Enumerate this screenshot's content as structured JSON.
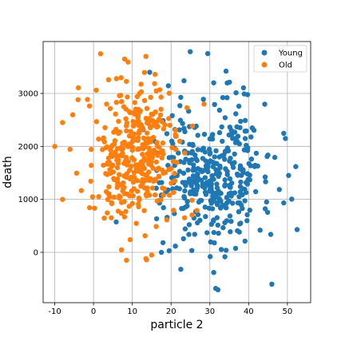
{
  "chart_data": {
    "type": "scatter",
    "title": "",
    "xlabel": "particle 2",
    "ylabel": "death",
    "xlim": [
      -13,
      56
    ],
    "ylim": [
      -950,
      3980
    ],
    "xticks": [
      -10,
      0,
      10,
      20,
      30,
      40,
      50
    ],
    "yticks": [
      0,
      1000,
      2000,
      3000
    ],
    "grid": true,
    "legend_position": "top-right",
    "series": [
      {
        "name": "Young",
        "color": "#1f77b4",
        "center": [
          31,
          1500
        ],
        "spread": [
          7,
          700
        ],
        "count": 380,
        "seed": 7,
        "points": [
          [
            14.5,
            3400
          ],
          [
            31.0,
            3200
          ],
          [
            49.5,
            2150
          ],
          [
            52.5,
            430
          ],
          [
            46.0,
            -600
          ],
          [
            31.5,
            -680
          ],
          [
            31.0,
            -380
          ],
          [
            22.5,
            -320
          ],
          [
            17.5,
            0
          ],
          [
            19.5,
            30
          ]
        ]
      },
      {
        "name": "Old",
        "color": "#ff7f0e",
        "center": [
          10,
          1850
        ],
        "spread": [
          6,
          650
        ],
        "count": 360,
        "seed": 13,
        "points": [
          [
            1.8,
            3750
          ],
          [
            8.0,
            3650
          ],
          [
            13.5,
            3700
          ],
          [
            -10.0,
            2000
          ],
          [
            -8.0,
            2450
          ],
          [
            -8.0,
            1000
          ],
          [
            8.5,
            -150
          ],
          [
            13.5,
            -120
          ],
          [
            15.0,
            -50
          ],
          [
            28.5,
            2800
          ]
        ]
      }
    ]
  }
}
